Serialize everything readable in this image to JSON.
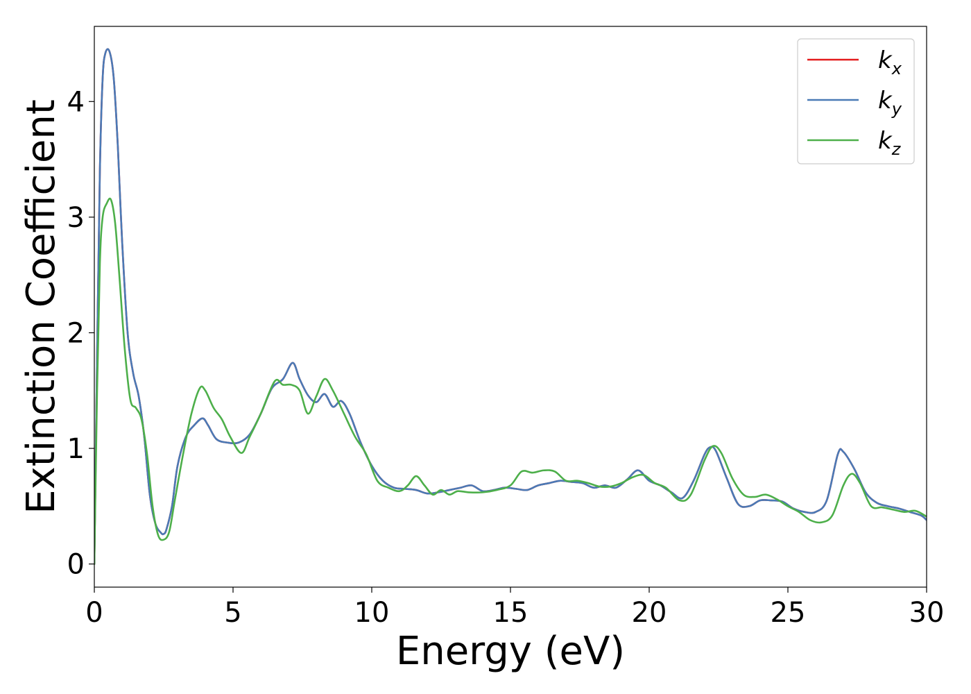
{
  "chart_data": {
    "type": "line",
    "title": "",
    "xlabel": "Energy (eV)",
    "ylabel": "Extinction Coefficient",
    "xlim": [
      0,
      30
    ],
    "ylim": [
      -0.2,
      4.65
    ],
    "xticks": [
      "0",
      "5",
      "10",
      "15",
      "20",
      "25",
      "30"
    ],
    "yticks": [
      "0",
      "1",
      "2",
      "3",
      "4"
    ],
    "grid": false,
    "legend_position": "top-right",
    "series": [
      {
        "name": "k_x",
        "label_main": "k",
        "label_sub": "x",
        "color": "#e41a1c",
        "x": [
          0,
          0.1,
          0.2,
          0.3,
          0.4,
          0.55,
          0.7,
          0.85,
          1.0,
          1.2,
          1.4,
          1.6,
          1.8,
          2.0,
          2.2,
          2.4,
          2.5,
          2.6,
          2.8,
          3.0,
          3.3,
          3.6,
          3.9,
          4.1,
          4.4,
          4.8,
          5.2,
          5.6,
          6.0,
          6.4,
          6.8,
          7.15,
          7.4,
          7.7,
          8.0,
          8.3,
          8.6,
          8.9,
          9.2,
          9.6,
          10.0,
          10.4,
          10.8,
          11.2,
          11.6,
          12.0,
          12.4,
          12.8,
          13.2,
          13.6,
          14.0,
          14.4,
          14.8,
          15.2,
          15.6,
          16.0,
          16.4,
          16.8,
          17.2,
          17.6,
          18.0,
          18.4,
          18.8,
          19.2,
          19.6,
          20.0,
          20.4,
          20.8,
          21.2,
          21.6,
          22.0,
          22.2,
          22.4,
          22.8,
          23.2,
          23.6,
          24.0,
          24.4,
          24.8,
          25.2,
          25.6,
          26.0,
          26.4,
          26.8,
          27.0,
          27.4,
          27.8,
          28.2,
          28.6,
          29.0,
          29.4,
          29.8,
          30.0
        ],
        "values": [
          0.0,
          1.8,
          3.4,
          4.2,
          4.42,
          4.43,
          4.2,
          3.6,
          2.8,
          2.0,
          1.65,
          1.45,
          1.1,
          0.6,
          0.35,
          0.27,
          0.26,
          0.3,
          0.5,
          0.85,
          1.1,
          1.2,
          1.26,
          1.2,
          1.08,
          1.05,
          1.05,
          1.12,
          1.3,
          1.52,
          1.6,
          1.74,
          1.6,
          1.46,
          1.4,
          1.47,
          1.36,
          1.41,
          1.3,
          1.05,
          0.85,
          0.72,
          0.66,
          0.65,
          0.64,
          0.61,
          0.62,
          0.64,
          0.66,
          0.68,
          0.63,
          0.64,
          0.66,
          0.65,
          0.64,
          0.68,
          0.7,
          0.72,
          0.71,
          0.7,
          0.66,
          0.68,
          0.66,
          0.73,
          0.81,
          0.72,
          0.68,
          0.62,
          0.57,
          0.72,
          0.95,
          1.01,
          0.98,
          0.74,
          0.52,
          0.5,
          0.55,
          0.55,
          0.54,
          0.48,
          0.45,
          0.45,
          0.55,
          0.95,
          0.97,
          0.82,
          0.62,
          0.53,
          0.5,
          0.48,
          0.45,
          0.42,
          0.38
        ]
      },
      {
        "name": "k_y",
        "label_main": "k",
        "label_sub": "y",
        "color": "#4a7ab6",
        "x": [
          0,
          0.1,
          0.2,
          0.3,
          0.4,
          0.55,
          0.7,
          0.85,
          1.0,
          1.2,
          1.4,
          1.6,
          1.8,
          2.0,
          2.2,
          2.4,
          2.5,
          2.6,
          2.8,
          3.0,
          3.3,
          3.6,
          3.9,
          4.1,
          4.4,
          4.8,
          5.2,
          5.6,
          6.0,
          6.4,
          6.8,
          7.15,
          7.4,
          7.7,
          8.0,
          8.3,
          8.6,
          8.9,
          9.2,
          9.6,
          10.0,
          10.4,
          10.8,
          11.2,
          11.6,
          12.0,
          12.4,
          12.8,
          13.2,
          13.6,
          14.0,
          14.4,
          14.8,
          15.2,
          15.6,
          16.0,
          16.4,
          16.8,
          17.2,
          17.6,
          18.0,
          18.4,
          18.8,
          19.2,
          19.6,
          20.0,
          20.4,
          20.8,
          21.2,
          21.6,
          22.0,
          22.2,
          22.4,
          22.8,
          23.2,
          23.6,
          24.0,
          24.4,
          24.8,
          25.2,
          25.6,
          26.0,
          26.4,
          26.8,
          27.0,
          27.4,
          27.8,
          28.2,
          28.6,
          29.0,
          29.4,
          29.8,
          30.0
        ],
        "values": [
          0.0,
          1.8,
          3.4,
          4.2,
          4.42,
          4.43,
          4.2,
          3.6,
          2.8,
          2.0,
          1.65,
          1.45,
          1.1,
          0.6,
          0.35,
          0.27,
          0.26,
          0.3,
          0.5,
          0.85,
          1.1,
          1.2,
          1.26,
          1.2,
          1.08,
          1.05,
          1.05,
          1.12,
          1.3,
          1.52,
          1.6,
          1.74,
          1.6,
          1.46,
          1.4,
          1.47,
          1.36,
          1.41,
          1.3,
          1.05,
          0.85,
          0.72,
          0.66,
          0.65,
          0.64,
          0.61,
          0.62,
          0.64,
          0.66,
          0.68,
          0.63,
          0.64,
          0.66,
          0.65,
          0.64,
          0.68,
          0.7,
          0.72,
          0.71,
          0.7,
          0.66,
          0.68,
          0.66,
          0.73,
          0.81,
          0.72,
          0.68,
          0.62,
          0.57,
          0.72,
          0.95,
          1.01,
          0.98,
          0.74,
          0.52,
          0.5,
          0.55,
          0.55,
          0.54,
          0.48,
          0.45,
          0.45,
          0.55,
          0.95,
          0.97,
          0.82,
          0.62,
          0.53,
          0.5,
          0.48,
          0.45,
          0.42,
          0.38
        ]
      },
      {
        "name": "k_z",
        "label_main": "k",
        "label_sub": "z",
        "color": "#4daf4a",
        "x": [
          0,
          0.1,
          0.2,
          0.3,
          0.45,
          0.6,
          0.75,
          0.9,
          1.1,
          1.3,
          1.5,
          1.7,
          1.9,
          2.1,
          2.3,
          2.5,
          2.7,
          2.9,
          3.2,
          3.5,
          3.8,
          4.0,
          4.3,
          4.6,
          4.9,
          5.3,
          5.6,
          6.0,
          6.5,
          6.8,
          7.1,
          7.4,
          7.7,
          8.0,
          8.3,
          8.6,
          9.0,
          9.4,
          9.8,
          10.2,
          10.6,
          11.0,
          11.3,
          11.6,
          11.9,
          12.2,
          12.5,
          12.8,
          13.1,
          13.5,
          14.0,
          14.5,
          15.0,
          15.4,
          15.8,
          16.2,
          16.6,
          17.0,
          17.4,
          17.8,
          18.2,
          18.6,
          19.0,
          19.4,
          19.8,
          20.2,
          20.6,
          21.1,
          21.5,
          22.0,
          22.3,
          22.6,
          23.0,
          23.4,
          23.8,
          24.2,
          24.6,
          25.0,
          25.4,
          25.8,
          26.2,
          26.6,
          27.0,
          27.3,
          27.6,
          28.0,
          28.4,
          28.8,
          29.2,
          29.6,
          30.0
        ],
        "values": [
          0.0,
          1.5,
          2.6,
          3.0,
          3.12,
          3.15,
          2.95,
          2.5,
          1.85,
          1.42,
          1.35,
          1.25,
          0.95,
          0.5,
          0.25,
          0.21,
          0.28,
          0.55,
          0.95,
          1.3,
          1.52,
          1.5,
          1.35,
          1.25,
          1.1,
          0.96,
          1.1,
          1.3,
          1.58,
          1.55,
          1.55,
          1.5,
          1.3,
          1.45,
          1.6,
          1.5,
          1.3,
          1.1,
          0.95,
          0.72,
          0.66,
          0.63,
          0.68,
          0.76,
          0.68,
          0.6,
          0.64,
          0.6,
          0.63,
          0.62,
          0.62,
          0.64,
          0.68,
          0.8,
          0.79,
          0.81,
          0.8,
          0.72,
          0.72,
          0.7,
          0.67,
          0.67,
          0.7,
          0.75,
          0.77,
          0.7,
          0.66,
          0.55,
          0.6,
          0.9,
          1.02,
          0.96,
          0.74,
          0.6,
          0.58,
          0.6,
          0.56,
          0.5,
          0.45,
          0.38,
          0.36,
          0.42,
          0.68,
          0.78,
          0.7,
          0.5,
          0.49,
          0.47,
          0.45,
          0.46,
          0.41
        ]
      }
    ]
  }
}
